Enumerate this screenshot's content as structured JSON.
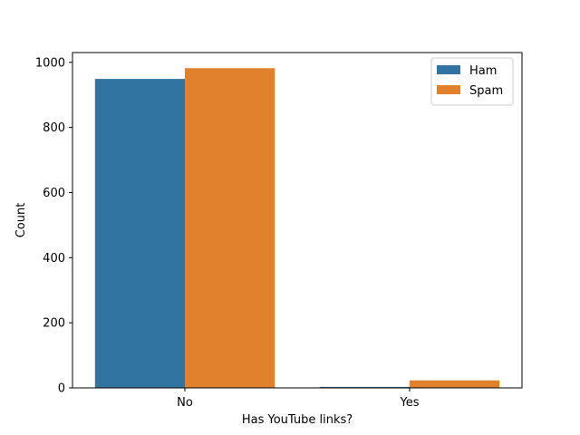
{
  "chart_data": {
    "type": "bar",
    "categories": [
      "No",
      "Yes"
    ],
    "series": [
      {
        "name": "Ham",
        "values": [
          949,
          3
        ]
      },
      {
        "name": "Spam",
        "values": [
          982,
          23
        ]
      }
    ],
    "xlabel": "Has YouTube links?",
    "ylabel": "Count",
    "ylim": [
      0,
      1030
    ],
    "yticks": [
      0,
      200,
      400,
      600,
      800,
      1000
    ],
    "grid": false,
    "legend_position": "top-right"
  },
  "colors": {
    "Ham": "#3274a1",
    "Spam": "#e1812c",
    "axis": "#000000"
  }
}
